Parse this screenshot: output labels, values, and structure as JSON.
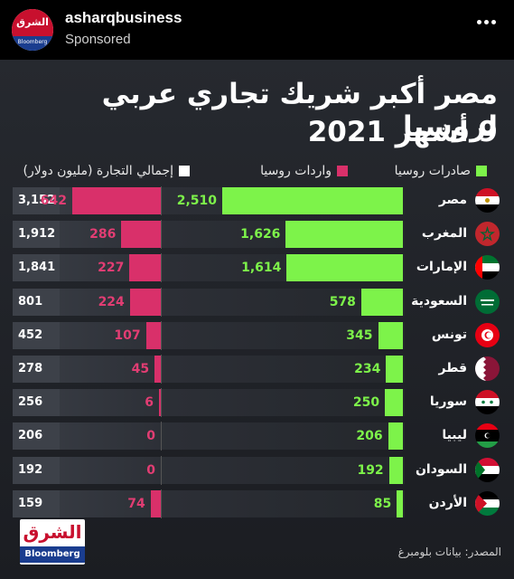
{
  "post": {
    "account_name": "asharqbusiness",
    "sponsored_label": "Sponsored",
    "avatar_top": "الشرق",
    "avatar_bottom": "Bloomberg"
  },
  "infographic": {
    "title_line1": "مصر أكبر شريك تجاري عربي لروسيا",
    "title_line2": "9 أشهر 2021",
    "source": "المصدر: بيانات بلومبرغ",
    "logo_top": "الشرق",
    "logo_bottom": "Bloomberg"
  },
  "legend": {
    "exports": "صادرات روسيا",
    "imports": "واردات روسيا",
    "total": "إجمالي التجارة (مليون دولار)"
  },
  "colors": {
    "exports": "#7df34a",
    "imports": "#d9306a",
    "total": "#ffffff"
  },
  "chart_data": {
    "type": "bar",
    "title": "مصر أكبر شريك تجاري عربي لروسيا",
    "subtitle": "9 أشهر 2021",
    "unit": "مليون دولار",
    "categories": [
      "مصر",
      "المغرب",
      "الإمارات",
      "السعودية",
      "تونس",
      "قطر",
      "سوريا",
      "ليبيا",
      "السودان",
      "الأردن"
    ],
    "series": [
      {
        "name": "صادرات روسيا",
        "values": [
          2510,
          1626,
          1614,
          578,
          345,
          234,
          250,
          206,
          192,
          85
        ]
      },
      {
        "name": "واردات روسيا",
        "values": [
          642,
          286,
          227,
          224,
          107,
          45,
          6,
          0,
          0,
          74
        ]
      },
      {
        "name": "إجمالي التجارة (مليون دولار)",
        "values": [
          3152,
          1912,
          1841,
          801,
          452,
          278,
          256,
          206,
          192,
          159
        ]
      }
    ],
    "display": {
      "exports": [
        "2,510",
        "1,626",
        "1,614",
        "578",
        "345",
        "234",
        "250",
        "206",
        "192",
        "85"
      ],
      "imports": [
        "642",
        "286",
        "227",
        "224",
        "107",
        "45",
        "6",
        "0",
        "0",
        "74"
      ],
      "totals": [
        "3,152",
        "1,912",
        "1,841",
        "801",
        "452",
        "278",
        "256",
        "206",
        "192",
        "159"
      ]
    }
  },
  "flags": [
    "egypt-flag-icon",
    "morocco-flag-icon",
    "uae-flag-icon",
    "saudi-flag-icon",
    "tunisia-flag-icon",
    "qatar-flag-icon",
    "syria-flag-icon",
    "libya-flag-icon",
    "sudan-flag-icon",
    "jordan-flag-icon"
  ]
}
